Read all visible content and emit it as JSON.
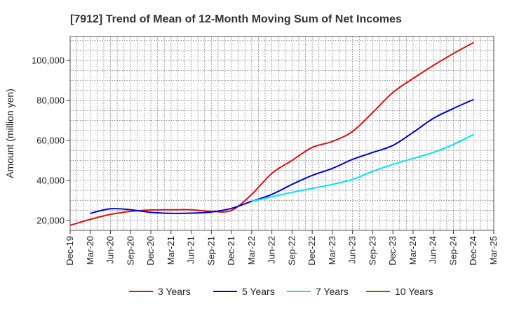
{
  "chart_data": {
    "type": "line",
    "title": "[7912]  Trend of Mean of 12-Month Moving Sum of Net Incomes",
    "xlabel": "",
    "ylabel": "Amount (million yen)",
    "x_ticks": [
      "Dec-19",
      "Mar-20",
      "Jun-20",
      "Sep-20",
      "Dec-20",
      "Mar-21",
      "Jun-21",
      "Sep-21",
      "Dec-21",
      "Mar-22",
      "Jun-22",
      "Sep-22",
      "Dec-22",
      "Mar-23",
      "Jun-23",
      "Sep-23",
      "Dec-23",
      "Mar-24",
      "Jun-24",
      "Sep-24",
      "Dec-24",
      "Mar-25"
    ],
    "y_ticks": [
      20000,
      40000,
      60000,
      80000,
      100000
    ],
    "y_tick_labels": [
      "20,000",
      "40,000",
      "60,000",
      "80,000",
      "100,000"
    ],
    "ylim": [
      15000,
      112000
    ],
    "grid": true,
    "legend_position": "bottom",
    "series": [
      {
        "name": "3 Years",
        "color": "#dd1111",
        "x": [
          "Dec-19",
          "Mar-20",
          "Jun-20",
          "Sep-20",
          "Dec-20",
          "Mar-21",
          "Jun-21",
          "Sep-21",
          "Dec-21",
          "Mar-22",
          "Jun-22",
          "Sep-22",
          "Dec-22",
          "Mar-23",
          "Jun-23",
          "Sep-23",
          "Dec-23",
          "Mar-24",
          "Jun-24",
          "Sep-24",
          "Dec-24"
        ],
        "values": [
          17500,
          20500,
          23000,
          24500,
          25200,
          25300,
          25300,
          24500,
          25000,
          33000,
          43500,
          50000,
          56500,
          59500,
          64500,
          74000,
          84000,
          91000,
          97500,
          103500,
          109000
        ]
      },
      {
        "name": "5 Years",
        "color": "#0000cc",
        "x": [
          "Mar-20",
          "Jun-20",
          "Sep-20",
          "Dec-20",
          "Mar-21",
          "Jun-21",
          "Sep-21",
          "Dec-21",
          "Mar-22",
          "Jun-22",
          "Sep-22",
          "Dec-22",
          "Mar-23",
          "Jun-23",
          "Sep-23",
          "Dec-23",
          "Mar-24",
          "Jun-24",
          "Sep-24",
          "Dec-24"
        ],
        "values": [
          23500,
          25800,
          25300,
          24000,
          23500,
          23600,
          24200,
          26000,
          29500,
          33000,
          38000,
          42500,
          46000,
          50500,
          54000,
          57500,
          64000,
          71000,
          76000,
          80500
        ]
      },
      {
        "name": "7 Years",
        "color": "#00e5ee",
        "x": [
          "Mar-22",
          "Jun-22",
          "Sep-22",
          "Dec-22",
          "Mar-23",
          "Jun-23",
          "Sep-23",
          "Dec-23",
          "Mar-24",
          "Jun-24",
          "Sep-24",
          "Dec-24"
        ],
        "values": [
          29500,
          31800,
          34000,
          36000,
          38000,
          40500,
          44500,
          48000,
          51000,
          54000,
          58000,
          63000
        ]
      },
      {
        "name": "10 Years",
        "color": "#228b22",
        "x": [],
        "values": []
      }
    ]
  }
}
